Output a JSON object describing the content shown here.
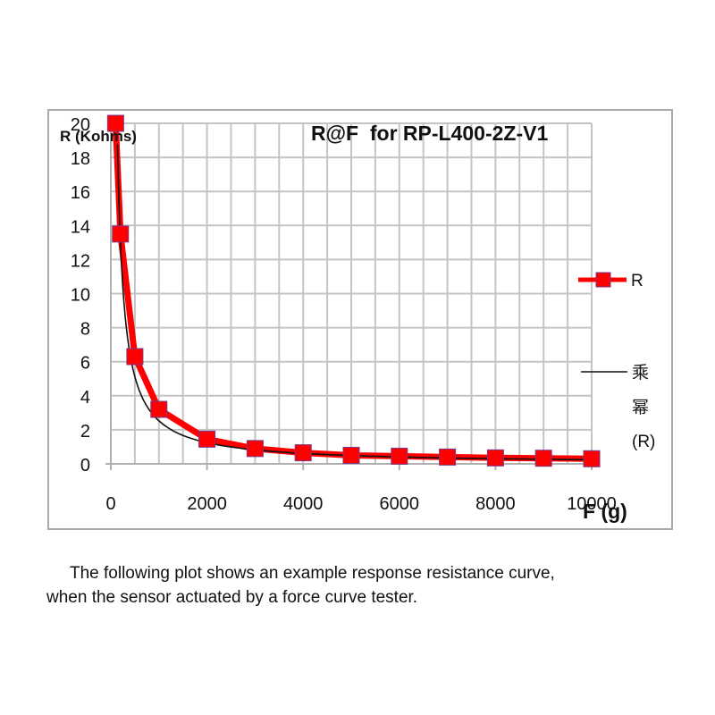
{
  "chart_data": {
    "type": "line",
    "title": "R@F  for RP-L400-2Z-V1",
    "xlabel": "F (g)",
    "ylabel": "R (Kohms)",
    "xlim": [
      0,
      10000
    ],
    "ylim": [
      0,
      20
    ],
    "x_ticks": [
      "0",
      "2000",
      "4000",
      "6000",
      "8000",
      "10000"
    ],
    "y_ticks": [
      "0",
      "2",
      "4",
      "6",
      "8",
      "10",
      "12",
      "14",
      "16",
      "18",
      "20"
    ],
    "grid": true,
    "legend_position": "right",
    "series": [
      {
        "name": "R",
        "color": "#ff0000",
        "marker": "square",
        "x": [
          100,
          200,
          500,
          1000,
          2000,
          3000,
          4000,
          5000,
          6000,
          7000,
          8000,
          9000,
          10000
        ],
        "values": [
          20,
          13.5,
          6.3,
          3.2,
          1.45,
          0.9,
          0.65,
          0.5,
          0.45,
          0.4,
          0.35,
          0.33,
          0.3
        ]
      },
      {
        "name": "乘幂 (R)",
        "color": "#000000",
        "type": "power-trendline",
        "formula": "y ≈ 2900·x^-1.02"
      }
    ]
  },
  "legend": {
    "series_label": "R",
    "trend_label_line1": "乘",
    "trend_label_line2": "幂",
    "trend_label_line3": "(R)"
  },
  "caption": {
    "line1": "The following plot shows an example response resistance curve,",
    "line2": "when the sensor actuated by a force curve tester."
  }
}
